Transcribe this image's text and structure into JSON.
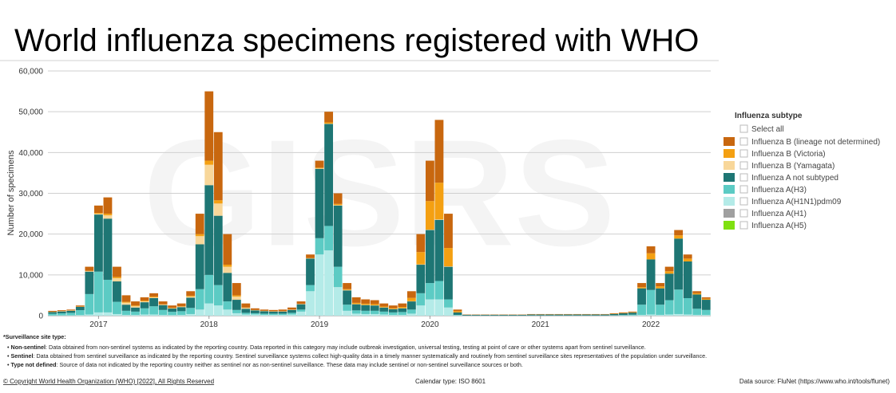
{
  "chart_data": {
    "type": "bar",
    "stacked": true,
    "title": "World influenza specimens registered with WHO",
    "watermark": "GISRS",
    "ylabel": "Number of specimens",
    "ylim": [
      0,
      60000
    ],
    "yticks": [
      0,
      {
        "value": 10000,
        "label": "10,000"
      },
      {
        "value": 20000,
        "label": "20,000"
      },
      {
        "value": 30000,
        "label": "30,000"
      },
      {
        "value": 40000,
        "label": "40,000"
      },
      {
        "value": 50000,
        "label": "50,000"
      },
      {
        "value": 60000,
        "label": "60,000"
      }
    ],
    "grid": true,
    "legend_title": "Influenza subtype",
    "legend_select_all": "Select all",
    "legend_position": "right",
    "categories": [
      null,
      null,
      null,
      null,
      null,
      "2017",
      null,
      null,
      null,
      null,
      null,
      null,
      null,
      null,
      null,
      null,
      null,
      "2018",
      null,
      null,
      null,
      null,
      null,
      null,
      null,
      null,
      null,
      null,
      null,
      "2019",
      null,
      null,
      null,
      null,
      null,
      null,
      null,
      null,
      null,
      null,
      null,
      "2020",
      null,
      null,
      null,
      null,
      null,
      null,
      null,
      null,
      null,
      null,
      null,
      "2021",
      null,
      null,
      null,
      null,
      null,
      null,
      null,
      null,
      null,
      null,
      null,
      "2022",
      null,
      null,
      null,
      null,
      null,
      null
    ],
    "series": [
      {
        "name": "Influenza B (lineage not determined)",
        "color": "#c8670f",
        "values": [
          200,
          200,
          200,
          250,
          1000,
          1800,
          4000,
          2500,
          1600,
          1000,
          800,
          800,
          700,
          550,
          700,
          1100,
          5000,
          17000,
          16700,
          7500,
          3000,
          1000,
          400,
          300,
          300,
          400,
          500,
          600,
          850,
          1700,
          2600,
          2600,
          1500,
          1350,
          1050,
          950,
          750,
          650,
          850,
          1650,
          4400,
          9900,
          15400,
          8400,
          400,
          60,
          60,
          60,
          60,
          60,
          60,
          60,
          80,
          80,
          80,
          80,
          80,
          80,
          80,
          80,
          80,
          120,
          140,
          150,
          1000,
          1700,
          800,
          1100,
          1300,
          1000,
          500,
          350
        ]
      },
      {
        "name": "Influenza B (Victoria)",
        "color": "#f4a012",
        "values": [
          50,
          50,
          50,
          50,
          100,
          200,
          400,
          300,
          200,
          200,
          200,
          200,
          100,
          100,
          100,
          200,
          500,
          1000,
          800,
          500,
          300,
          100,
          50,
          50,
          50,
          50,
          50,
          50,
          100,
          200,
          300,
          300,
          200,
          300,
          300,
          300,
          200,
          200,
          300,
          800,
          3000,
          7000,
          9000,
          4500,
          300,
          30,
          30,
          30,
          30,
          30,
          30,
          30,
          40,
          40,
          40,
          40,
          40,
          40,
          40,
          40,
          40,
          60,
          80,
          100,
          300,
          1500,
          500,
          600,
          800,
          700,
          300,
          250
        ]
      },
      {
        "name": "Influenza B (Yamagata)",
        "color": "#f8d79a",
        "values": [
          50,
          50,
          50,
          50,
          100,
          200,
          800,
          800,
          500,
          300,
          200,
          200,
          100,
          100,
          100,
          300,
          2000,
          5000,
          3000,
          1500,
          800,
          200,
          50,
          50,
          50,
          50,
          50,
          50,
          50,
          100,
          100,
          100,
          100,
          50,
          50,
          50,
          50,
          50,
          50,
          50,
          100,
          100,
          100,
          100,
          0,
          0,
          0,
          0,
          0,
          0,
          0,
          0,
          0,
          0,
          0,
          0,
          0,
          0,
          0,
          0,
          0,
          0,
          0,
          0,
          0,
          0,
          0,
          0,
          0,
          0,
          0,
          0
        ]
      },
      {
        "name": "Influenza A not subtyped",
        "color": "#1e7674",
        "values": [
          400,
          450,
          500,
          800,
          5500,
          14000,
          15000,
          5000,
          1500,
          1000,
          1500,
          2000,
          1200,
          800,
          1000,
          2500,
          11000,
          22000,
          17000,
          7000,
          2500,
          1000,
          700,
          600,
          500,
          500,
          700,
          1300,
          6500,
          17000,
          25000,
          15000,
          3500,
          1500,
          1400,
          1300,
          1000,
          800,
          900,
          2000,
          7000,
          13000,
          15000,
          8000,
          600,
          150,
          150,
          150,
          150,
          150,
          150,
          150,
          200,
          200,
          200,
          200,
          200,
          200,
          200,
          200,
          200,
          300,
          400,
          500,
          4000,
          7500,
          4000,
          6500,
          12500,
          9000,
          3500,
          2500
        ]
      },
      {
        "name": "Influenza A(H3)",
        "color": "#5ccbc4",
        "values": [
          400,
          500,
          600,
          1200,
          5000,
          10000,
          8000,
          3000,
          1000,
          800,
          1500,
          2000,
          1200,
          800,
          900,
          1500,
          5000,
          7000,
          5000,
          2000,
          800,
          400,
          300,
          300,
          300,
          300,
          400,
          500,
          1500,
          4000,
          6000,
          5000,
          1500,
          800,
          800,
          800,
          700,
          600,
          700,
          1000,
          3000,
          4000,
          4500,
          2000,
          100,
          30,
          30,
          30,
          30,
          30,
          30,
          30,
          40,
          40,
          40,
          40,
          40,
          40,
          40,
          40,
          40,
          60,
          100,
          150,
          2500,
          6000,
          2500,
          3500,
          6000,
          4000,
          1500,
          1200
        ]
      },
      {
        "name": "Influenza A(H1N1)pdm09",
        "color": "#b4ebe8",
        "values": [
          80,
          90,
          100,
          150,
          300,
          800,
          800,
          400,
          200,
          200,
          300,
          300,
          200,
          150,
          200,
          400,
          1500,
          3000,
          2500,
          1500,
          600,
          300,
          300,
          200,
          200,
          200,
          300,
          1000,
          6000,
          15000,
          16000,
          7000,
          1200,
          500,
          400,
          400,
          300,
          200,
          200,
          500,
          2500,
          4000,
          4000,
          2000,
          100,
          30,
          30,
          30,
          30,
          30,
          30,
          30,
          40,
          40,
          40,
          40,
          40,
          40,
          40,
          40,
          40,
          60,
          80,
          100,
          200,
          300,
          200,
          300,
          400,
          300,
          200,
          200
        ]
      },
      {
        "name": "Influenza A(H1)",
        "color": "#a0a0a0",
        "values": [
          0,
          0,
          0,
          0,
          0,
          0,
          0,
          0,
          0,
          0,
          0,
          0,
          0,
          0,
          0,
          0,
          0,
          0,
          0,
          0,
          0,
          0,
          0,
          0,
          0,
          0,
          0,
          0,
          0,
          0,
          0,
          0,
          0,
          0,
          0,
          0,
          0,
          0,
          0,
          0,
          0,
          0,
          0,
          0,
          0,
          0,
          0,
          0,
          0,
          0,
          0,
          0,
          0,
          0,
          0,
          0,
          0,
          0,
          0,
          0,
          0,
          0,
          0,
          0,
          0,
          0,
          0,
          0,
          0,
          0,
          0,
          0
        ]
      },
      {
        "name": "Influenza A(H5)",
        "color": "#7fe010",
        "values": [
          0,
          0,
          0,
          0,
          0,
          0,
          0,
          0,
          0,
          0,
          0,
          0,
          0,
          0,
          0,
          0,
          0,
          0,
          0,
          0,
          0,
          0,
          0,
          0,
          0,
          0,
          0,
          0,
          0,
          0,
          0,
          0,
          0,
          0,
          0,
          0,
          0,
          0,
          0,
          0,
          0,
          0,
          0,
          0,
          0,
          0,
          0,
          0,
          0,
          0,
          0,
          0,
          0,
          0,
          0,
          0,
          0,
          0,
          0,
          0,
          0,
          0,
          0,
          0,
          0,
          0,
          0,
          0,
          0,
          0,
          0,
          0
        ]
      }
    ]
  },
  "notes": {
    "heading": "*Surveillance site type:",
    "items": [
      {
        "term": "Non-sentinel",
        "text": ": Data obtained from non-sentinel systems as indicated by the reporting country. Data reported in this category may include outbreak investigation, universal testing, testing at point of care or other systems apart from sentinel surveillance."
      },
      {
        "term": "Sentinel",
        "text": ": Data obtained from sentinel surveillance as indicated by the reporting country. Sentinel surveillance systems collect high-quality data in a timely manner systematically and routinely from sentinel surveillance sites representatives of the population under surveillance."
      },
      {
        "term": "Type not defined",
        "text": ": Source of data not indicated by the reporting country neither as sentinel nor as non-sentinel surveillance. These data may include sentinel or non-sentinel surveillance sources or both."
      }
    ]
  },
  "footer": {
    "copyright": "© Copyright World Health Organization (WHO) [2022], All Rights Reserved",
    "calendar": "Calendar type: ISO 8601",
    "source": "Data source: FluNet (https://www.who.int/tools/flunet)"
  }
}
